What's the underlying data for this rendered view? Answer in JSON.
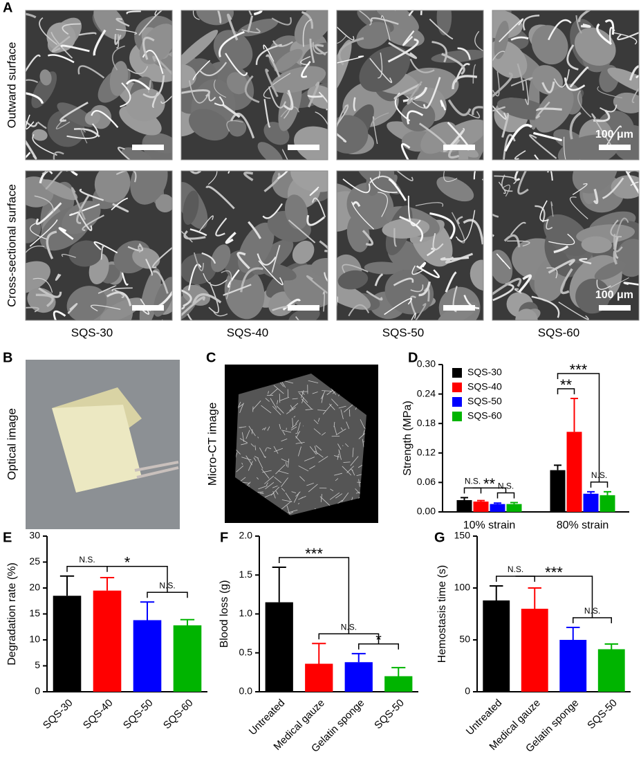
{
  "figure": {
    "panel_letters": [
      "A",
      "B",
      "C",
      "D",
      "E",
      "F",
      "G"
    ],
    "sem": {
      "row_labels": [
        "Outward surface",
        "Cross-sectional surface"
      ],
      "column_labels": [
        "SQS-30",
        "SQS-40",
        "SQS-50",
        "SQS-60"
      ],
      "scale_label": "100 μm"
    },
    "optical_label": "Optical image",
    "microct_label": "Micro-CT image"
  },
  "chart_data": [
    {
      "type": "grouped_bar",
      "ylabel": "Strength (MPa)",
      "categories": [
        "10% strain",
        "80% strain"
      ],
      "series": [
        {
          "name": "SQS-30",
          "color": "#000000",
          "values": [
            0.024,
            0.085
          ],
          "errors": [
            0.005,
            0.01
          ]
        },
        {
          "name": "SQS-40",
          "color": "#ff0000",
          "values": [
            0.021,
            0.163
          ],
          "errors": [
            0.002,
            0.068
          ]
        },
        {
          "name": "SQS-50",
          "color": "#0000ff",
          "values": [
            0.016,
            0.037
          ],
          "errors": [
            0.002,
            0.004
          ]
        },
        {
          "name": "SQS-60",
          "color": "#00b400",
          "values": [
            0.016,
            0.034
          ],
          "errors": [
            0.003,
            0.007
          ]
        }
      ],
      "ylim": [
        0,
        0.3
      ],
      "yticks": [
        {
          "value": 0,
          "label": "0.00"
        },
        0.06,
        0.12,
        0.18,
        0.24,
        {
          "value": 0.3,
          "label": "0.30"
        }
      ],
      "legend": "upper left",
      "annotations": [
        {
          "text": "N.S.",
          "group": 0,
          "span": [
            0,
            1
          ]
        },
        {
          "text": "N.S.",
          "group": 0,
          "span": [
            2,
            3
          ]
        },
        {
          "text": "**",
          "group": 0,
          "span": [
            0.5,
            2.5
          ]
        },
        {
          "text": "**",
          "group": 1,
          "span": [
            0,
            1
          ]
        },
        {
          "text": "N.S.",
          "group": 1,
          "span": [
            2,
            3
          ]
        },
        {
          "text": "***",
          "group": 1,
          "span": [
            0,
            2.5
          ]
        }
      ]
    },
    {
      "type": "bar",
      "ylabel": "Degradation rate (%)",
      "categories": [
        "SQS-30",
        "SQS-40",
        "SQS-50",
        "SQS-60"
      ],
      "values": [
        18.5,
        19.5,
        13.8,
        12.8
      ],
      "errors": [
        3.8,
        2.5,
        3.5,
        1.1
      ],
      "colors": [
        "#000000",
        "#ff0000",
        "#0000ff",
        "#00b400"
      ],
      "ylim": [
        0,
        30
      ],
      "yticks": [
        0,
        5,
        10,
        15,
        20,
        25,
        30
      ],
      "annotations": [
        {
          "text": "N.S.",
          "span": [
            0,
            1
          ]
        },
        {
          "text": "N.S.",
          "span": [
            2,
            3
          ]
        },
        {
          "text": "*",
          "span": [
            0.5,
            2.5
          ]
        }
      ]
    },
    {
      "type": "bar",
      "ylabel": "Blood loss (g)",
      "categories": [
        "Untreated",
        "Medical gauze",
        "Gelatin sponge",
        "SQS-50"
      ],
      "values": [
        1.15,
        0.36,
        0.38,
        0.2
      ],
      "errors": [
        0.45,
        0.26,
        0.11,
        0.11
      ],
      "colors": [
        "#000000",
        "#ff0000",
        "#0000ff",
        "#00b400"
      ],
      "ylim": [
        0,
        2.0
      ],
      "yticks": [
        {
          "value": 0,
          "label": "0.0"
        },
        0.5,
        {
          "value": 1.0,
          "label": "1.0"
        },
        1.5,
        {
          "value": 2.0,
          "label": "2.0"
        }
      ],
      "annotations": [
        {
          "text": "*",
          "span": [
            2,
            3
          ]
        },
        {
          "text": "N.S.",
          "span": [
            1,
            2.5
          ]
        },
        {
          "text": "***",
          "span": [
            0,
            1.75
          ]
        }
      ]
    },
    {
      "type": "bar",
      "ylabel": "Hemostasis time (s)",
      "categories": [
        "Untreated",
        "Medical gauze",
        "Gelatin sponge",
        "SQS-50"
      ],
      "values": [
        88,
        80,
        50,
        41
      ],
      "errors": [
        14,
        20,
        12,
        5
      ],
      "colors": [
        "#000000",
        "#ff0000",
        "#0000ff",
        "#00b400"
      ],
      "ylim": [
        0,
        150
      ],
      "yticks": [
        0,
        50,
        100,
        150
      ],
      "annotations": [
        {
          "text": "N.S.",
          "span": [
            0,
            1
          ]
        },
        {
          "text": "N.S.",
          "span": [
            2,
            3
          ]
        },
        {
          "text": "***",
          "span": [
            0.5,
            2.5
          ]
        }
      ]
    }
  ]
}
